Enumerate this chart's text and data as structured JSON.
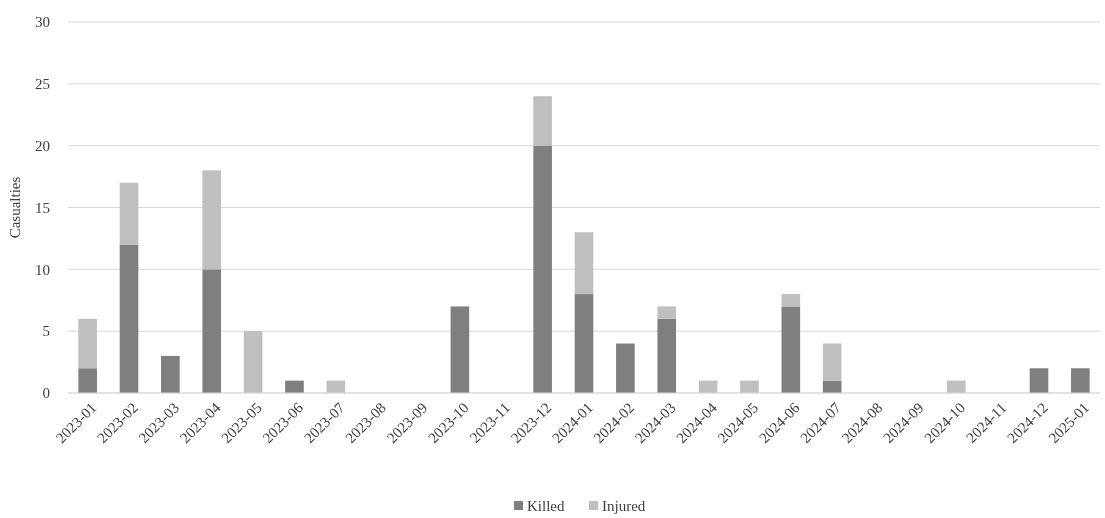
{
  "chart_data": {
    "type": "bar",
    "stacked": true,
    "ylabel": "Casualties",
    "categories": [
      "2023-01",
      "2023-02",
      "2023-03",
      "2023-04",
      "2023-05",
      "2023-06",
      "2023-07",
      "2023-08",
      "2023-09",
      "2023-10",
      "2023-11",
      "2023-12",
      "2024-01",
      "2024-02",
      "2024-03",
      "2024-04",
      "2024-05",
      "2024-06",
      "2024-07",
      "2024-08",
      "2024-09",
      "2024-10",
      "2024-11",
      "2024-12",
      "2025-01"
    ],
    "series": [
      {
        "name": "Killed",
        "color": "#7f7f7f",
        "values": [
          2,
          12,
          3,
          10,
          0,
          1,
          0,
          0,
          0,
          7,
          0,
          20,
          8,
          4,
          6,
          0,
          0,
          7,
          1,
          0,
          0,
          0,
          0,
          2,
          2
        ]
      },
      {
        "name": "Injured",
        "color": "#bfbfbf",
        "values": [
          4,
          5,
          0,
          8,
          5,
          0,
          1,
          0,
          0,
          0,
          0,
          4,
          5,
          0,
          1,
          1,
          1,
          1,
          3,
          0,
          0,
          1,
          0,
          0,
          0
        ]
      }
    ],
    "ylim": [
      0,
      30
    ],
    "yticks": [
      0,
      5,
      10,
      15,
      20,
      25,
      30
    ],
    "grid": "y",
    "legend": "bottom"
  }
}
